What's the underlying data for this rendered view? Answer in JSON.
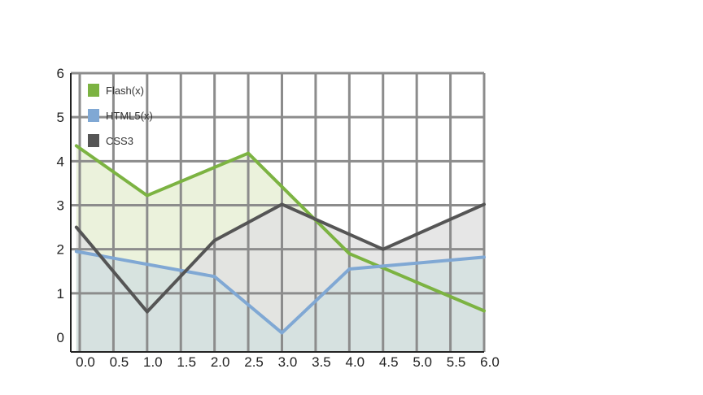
{
  "chart_data": {
    "type": "area",
    "title": "",
    "xlabel": "",
    "ylabel": "",
    "x": [
      0.0,
      0.5,
      1.0,
      1.5,
      2.0,
      2.5,
      3.0,
      3.5,
      4.0,
      4.5,
      5.0,
      5.5,
      6.0
    ],
    "x_tick_labels": [
      "0.0",
      "0.5",
      "1.0",
      "1.5",
      "2.0",
      "2.5",
      "3.0",
      "3.5",
      "4.0",
      "4.5",
      "5.0",
      "5.5",
      "6.0"
    ],
    "y_tick_labels": [
      "0",
      "1",
      "2",
      "3",
      "4",
      "5",
      "6"
    ],
    "xlim": [
      0,
      6
    ],
    "ylim": [
      0,
      6
    ],
    "grid": true,
    "legend_position": "top-left",
    "series": [
      {
        "name": "Flash(x)",
        "color": "#7cb342",
        "fill": "#e8f0d6",
        "points": [
          [
            -0.05,
            4.35
          ],
          [
            1.0,
            3.22
          ],
          [
            2.5,
            4.18
          ],
          [
            4.0,
            1.9
          ],
          [
            6.0,
            0.6
          ]
        ]
      },
      {
        "name": "HTML5(x)",
        "color": "#80a8d4",
        "fill": "#d3e0df",
        "points": [
          [
            -0.05,
            1.95
          ],
          [
            2.0,
            1.38
          ],
          [
            3.0,
            0.1
          ],
          [
            4.0,
            1.55
          ],
          [
            6.0,
            1.82
          ]
        ]
      },
      {
        "name": "CSS3",
        "color": "#555555",
        "fill": "#e2e2e2",
        "points": [
          [
            -0.05,
            2.5
          ],
          [
            1.0,
            0.58
          ],
          [
            2.0,
            2.2
          ],
          [
            3.0,
            3.02
          ],
          [
            4.5,
            2.0
          ],
          [
            6.0,
            3.02
          ]
        ]
      }
    ]
  }
}
